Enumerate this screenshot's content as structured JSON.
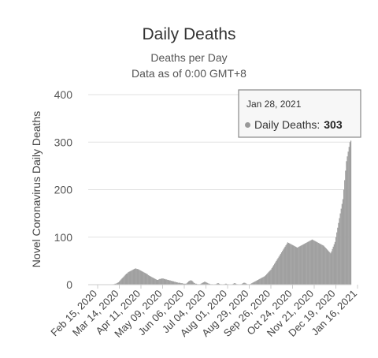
{
  "chart_data": {
    "type": "bar",
    "title": "Daily Deaths",
    "subtitle_1": "Deaths per Day",
    "subtitle_2": "Data as of 0:00 GMT+8",
    "ylabel": "Novel Coronavirus Daily Deaths",
    "xlabel": "",
    "ylim": [
      0,
      400
    ],
    "yticks": [
      "0",
      "100",
      "200",
      "300",
      "400"
    ],
    "xtick_labels": [
      "Feb 15, 2020",
      "Mar 14, 2020",
      "Apr 11, 2020",
      "May 09, 2020",
      "Jun 06, 2020",
      "Jul 04, 2020",
      "Aug 01, 2020",
      "Aug 29, 2020",
      "Sep 26, 2020",
      "Oct 24, 2020",
      "Nov 21, 2020",
      "Dec 19, 2020",
      "Jan 16, 2021"
    ],
    "grid": true,
    "bar_color": "#a0a0a0",
    "series": [
      {
        "name": "Daily Deaths",
        "start_date": "2020-02-15",
        "end_date": "2021-01-28",
        "values": [
          0,
          0,
          0,
          0,
          0,
          0,
          0,
          0,
          0,
          0,
          0,
          0,
          0,
          0,
          0,
          0,
          0,
          0,
          0,
          0,
          0,
          0,
          0,
          0,
          0,
          0,
          0,
          0,
          1,
          1,
          2,
          2,
          3,
          4,
          5,
          7,
          9,
          11,
          13,
          15,
          17,
          19,
          21,
          23,
          24,
          26,
          27,
          28,
          29,
          30,
          31,
          32,
          33,
          34,
          34,
          33,
          33,
          32,
          31,
          30,
          29,
          28,
          27,
          26,
          25,
          24,
          23,
          22,
          20,
          19,
          18,
          17,
          16,
          15,
          14,
          13,
          12,
          11,
          10,
          10,
          11,
          12,
          12,
          13,
          13,
          13,
          12,
          12,
          11,
          11,
          10,
          10,
          9,
          9,
          8,
          8,
          7,
          7,
          6,
          6,
          5,
          5,
          4,
          4,
          4,
          3,
          3,
          3,
          2,
          2,
          2,
          2,
          3,
          5,
          7,
          8,
          9,
          9,
          8,
          6,
          4,
          3,
          2,
          2,
          1,
          1,
          1,
          1,
          2,
          3,
          4,
          5,
          6,
          6,
          5,
          4,
          3,
          2,
          2,
          1,
          1,
          1,
          0,
          0,
          1,
          1,
          2,
          3,
          3,
          2,
          1,
          1,
          0,
          0,
          1,
          1,
          2,
          2,
          1,
          1,
          0,
          0,
          0,
          0,
          1,
          2,
          3,
          3,
          2,
          1,
          1,
          0,
          0,
          1,
          1,
          2,
          3,
          4,
          4,
          3,
          2,
          1,
          1,
          1,
          1,
          2,
          3,
          4,
          5,
          6,
          7,
          8,
          9,
          10,
          11,
          12,
          13,
          14,
          15,
          16,
          17,
          18,
          20,
          22,
          24,
          26,
          28,
          30,
          32,
          35,
          38,
          41,
          44,
          47,
          50,
          53,
          56,
          59,
          62,
          65,
          68,
          71,
          74,
          77,
          80,
          83,
          86,
          89,
          88,
          87,
          86,
          85,
          84,
          83,
          82,
          81,
          80,
          79,
          78,
          79,
          80,
          81,
          82,
          83,
          84,
          85,
          86,
          87,
          88,
          89,
          90,
          91,
          92,
          93,
          94,
          95,
          94,
          93,
          92,
          91,
          90,
          89,
          88,
          87,
          86,
          85,
          84,
          83,
          82,
          80,
          78,
          76,
          74,
          72,
          70,
          68,
          66,
          70,
          75,
          80,
          85,
          90,
          100,
          110,
          120,
          130,
          140,
          150,
          160,
          170,
          180,
          200,
          220,
          240,
          260,
          270,
          280,
          290,
          300,
          303
        ]
      }
    ],
    "tooltip": {
      "date": "Jan 28, 2021",
      "label": "Daily Deaths:",
      "value": "303"
    }
  }
}
